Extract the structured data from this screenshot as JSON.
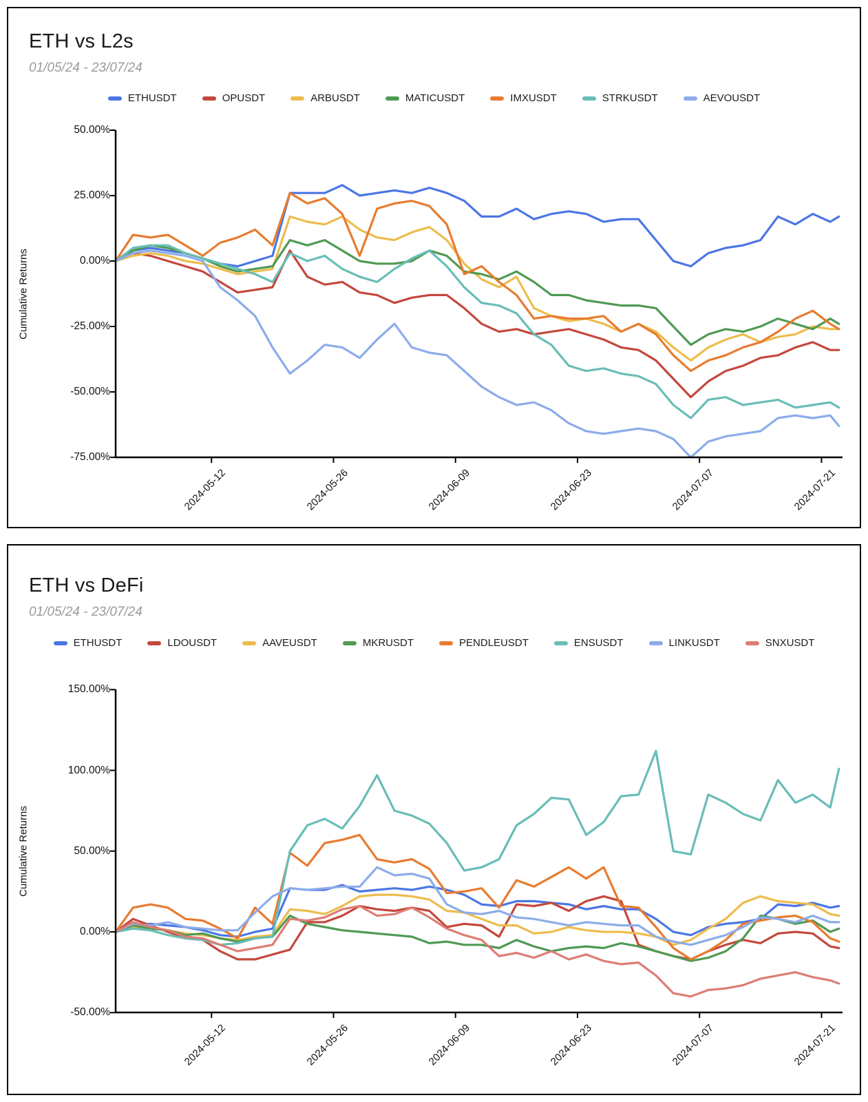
{
  "chart_data": [
    {
      "type": "line",
      "title": "ETH vs L2s",
      "subtitle": "01/05/24 - 23/07/24",
      "ylabel": "Cumulative Returns",
      "legend_position": "top-center",
      "grid": false,
      "ylim": [
        -75,
        50
      ],
      "y_ticks": [
        {
          "label": "50.00%",
          "value": 50
        },
        {
          "label": "25.00%",
          "value": 25
        },
        {
          "label": "0.00%",
          "value": 0
        },
        {
          "label": "-25.00%",
          "value": -25
        },
        {
          "label": "-50.00%",
          "value": -50
        },
        {
          "label": "-75.00%",
          "value": -75
        }
      ],
      "x_ticks": [
        "2024-05-12",
        "2024-05-26",
        "2024-06-09",
        "2024-06-23",
        "2024-07-07",
        "2024-07-21"
      ],
      "x": [
        "2024-05-01",
        "2024-05-03",
        "2024-05-05",
        "2024-05-07",
        "2024-05-09",
        "2024-05-11",
        "2024-05-13",
        "2024-05-15",
        "2024-05-17",
        "2024-05-19",
        "2024-05-21",
        "2024-05-23",
        "2024-05-25",
        "2024-05-27",
        "2024-05-29",
        "2024-05-31",
        "2024-06-02",
        "2024-06-04",
        "2024-06-06",
        "2024-06-08",
        "2024-06-10",
        "2024-06-12",
        "2024-06-14",
        "2024-06-16",
        "2024-06-18",
        "2024-06-20",
        "2024-06-22",
        "2024-06-24",
        "2024-06-26",
        "2024-06-28",
        "2024-06-30",
        "2024-07-02",
        "2024-07-04",
        "2024-07-06",
        "2024-07-08",
        "2024-07-10",
        "2024-07-12",
        "2024-07-14",
        "2024-07-16",
        "2024-07-18",
        "2024-07-20",
        "2024-07-22",
        "2024-07-23"
      ],
      "series": [
        {
          "name": "ETHUSDT",
          "color": "#4b76e3",
          "values": [
            0,
            4,
            5,
            4,
            3,
            1,
            -1,
            -2,
            0,
            2,
            26,
            26,
            26,
            29,
            25,
            26,
            27,
            26,
            28,
            26,
            23,
            17,
            17,
            20,
            16,
            18,
            19,
            18,
            15,
            16,
            16,
            8,
            0,
            -2,
            3,
            5,
            6,
            8,
            17,
            14,
            18,
            15,
            17
          ]
        },
        {
          "name": "OPUSDT",
          "color": "#c4473c",
          "values": [
            0,
            3,
            2,
            0,
            -2,
            -4,
            -8,
            -12,
            -11,
            -10,
            4,
            -6,
            -9,
            -8,
            -12,
            -13,
            -16,
            -14,
            -13,
            -13,
            -18,
            -24,
            -27,
            -26,
            -28,
            -27,
            -26,
            -28,
            -30,
            -33,
            -34,
            -38,
            -45,
            -52,
            -46,
            -42,
            -40,
            -37,
            -36,
            -33,
            -31,
            -34,
            -34
          ]
        },
        {
          "name": "ARBUSDT",
          "color": "#edbc4c",
          "values": [
            0,
            2,
            3,
            2,
            0,
            -1,
            -3,
            -5,
            -4,
            -3,
            17,
            15,
            14,
            17,
            12,
            9,
            8,
            11,
            13,
            8,
            -1,
            -7,
            -10,
            -6,
            -18,
            -21,
            -23,
            -22,
            -24,
            -27,
            -24,
            -27,
            -33,
            -38,
            -33,
            -30,
            -28,
            -31,
            -29,
            -28,
            -25,
            -26,
            -26
          ]
        },
        {
          "name": "MATICUSDT",
          "color": "#4f9a53",
          "values": [
            0,
            4,
            6,
            5,
            3,
            1,
            -2,
            -4,
            -3,
            -2,
            8,
            6,
            8,
            4,
            0,
            -1,
            -1,
            0,
            4,
            2,
            -4,
            -5,
            -7,
            -4,
            -8,
            -13,
            -13,
            -15,
            -16,
            -17,
            -17,
            -18,
            -25,
            -32,
            -28,
            -26,
            -27,
            -25,
            -22,
            -24,
            -26,
            -22,
            -24
          ]
        },
        {
          "name": "IMXUSDT",
          "color": "#e87b2f",
          "values": [
            0,
            10,
            9,
            10,
            6,
            2,
            7,
            9,
            12,
            6,
            26,
            22,
            24,
            18,
            2,
            20,
            22,
            23,
            21,
            14,
            -5,
            -2,
            -8,
            -13,
            -22,
            -21,
            -22,
            -22,
            -21,
            -27,
            -24,
            -28,
            -36,
            -42,
            -38,
            -36,
            -33,
            -31,
            -27,
            -22,
            -19,
            -24,
            -26
          ]
        },
        {
          "name": "STRKUSDT",
          "color": "#68bdb6",
          "values": [
            0,
            5,
            6,
            6,
            3,
            1,
            -1,
            -3,
            -5,
            -8,
            3,
            0,
            2,
            -3,
            -6,
            -8,
            -3,
            1,
            4,
            -2,
            -10,
            -16,
            -17,
            -20,
            -28,
            -32,
            -40,
            -42,
            -41,
            -43,
            -44,
            -47,
            -55,
            -60,
            -53,
            -52,
            -55,
            -54,
            -53,
            -56,
            -55,
            -54,
            -56
          ]
        },
        {
          "name": "AEVOUSDT",
          "color": "#8cacea",
          "values": [
            0,
            3,
            4,
            3,
            2,
            0,
            -10,
            -15,
            -21,
            -33,
            -43,
            -38,
            -32,
            -33,
            -37,
            -30,
            -24,
            -33,
            -35,
            -36,
            -42,
            -48,
            -52,
            -55,
            -54,
            -57,
            -62,
            -65,
            -66,
            -65,
            -64,
            -65,
            -68,
            -75,
            -69,
            -67,
            -66,
            -65,
            -60,
            -59,
            -60,
            -59,
            -63
          ]
        }
      ]
    },
    {
      "type": "line",
      "title": "ETH vs DeFi",
      "subtitle": "01/05/24 - 23/07/24",
      "ylabel": "Cumulative Returns",
      "legend_position": "top-center",
      "grid": false,
      "ylim": [
        -50,
        150
      ],
      "y_ticks": [
        {
          "label": "150.00%",
          "value": 150
        },
        {
          "label": "100.00%",
          "value": 100
        },
        {
          "label": "50.00%",
          "value": 50
        },
        {
          "label": "0.00%",
          "value": 0
        },
        {
          "label": "-50.00%",
          "value": -50
        }
      ],
      "x_ticks": [
        "2024-05-12",
        "2024-05-26",
        "2024-06-09",
        "2024-06-23",
        "2024-07-07",
        "2024-07-21"
      ],
      "x": [
        "2024-05-01",
        "2024-05-03",
        "2024-05-05",
        "2024-05-07",
        "2024-05-09",
        "2024-05-11",
        "2024-05-13",
        "2024-05-15",
        "2024-05-17",
        "2024-05-19",
        "2024-05-21",
        "2024-05-23",
        "2024-05-25",
        "2024-05-27",
        "2024-05-29",
        "2024-05-31",
        "2024-06-02",
        "2024-06-04",
        "2024-06-06",
        "2024-06-08",
        "2024-06-10",
        "2024-06-12",
        "2024-06-14",
        "2024-06-16",
        "2024-06-18",
        "2024-06-20",
        "2024-06-22",
        "2024-06-24",
        "2024-06-26",
        "2024-06-28",
        "2024-06-30",
        "2024-07-02",
        "2024-07-04",
        "2024-07-06",
        "2024-07-08",
        "2024-07-10",
        "2024-07-12",
        "2024-07-14",
        "2024-07-16",
        "2024-07-18",
        "2024-07-20",
        "2024-07-22",
        "2024-07-23"
      ],
      "series": [
        {
          "name": "ETHUSDT",
          "color": "#4b76e3",
          "values": [
            0,
            4,
            5,
            4,
            3,
            1,
            -2,
            -3,
            0,
            2,
            27,
            26,
            26,
            29,
            25,
            26,
            27,
            26,
            28,
            26,
            23,
            17,
            16,
            19,
            19,
            18,
            17,
            14,
            16,
            14,
            14,
            8,
            0,
            -2,
            3,
            5,
            6,
            8,
            17,
            16,
            18,
            15,
            16
          ]
        },
        {
          "name": "LDOUSDT",
          "color": "#c4473c",
          "values": [
            0,
            8,
            4,
            0,
            -4,
            -5,
            -12,
            -17,
            -17,
            -14,
            -11,
            6,
            6,
            10,
            16,
            14,
            13,
            15,
            13,
            3,
            5,
            4,
            -3,
            17,
            16,
            18,
            13,
            19,
            22,
            19,
            -8,
            -12,
            -15,
            -17,
            -12,
            -8,
            -5,
            -7,
            -1,
            0,
            -1,
            -9,
            -10
          ]
        },
        {
          "name": "AAVEUSDT",
          "color": "#edbc4c",
          "values": [
            0,
            3,
            2,
            1,
            -1,
            -2,
            -4,
            -5,
            -3,
            -2,
            14,
            13,
            11,
            16,
            22,
            23,
            23,
            22,
            20,
            13,
            12,
            8,
            4,
            4,
            -1,
            0,
            3,
            1,
            0,
            0,
            -1,
            -3,
            -8,
            -5,
            2,
            8,
            18,
            22,
            19,
            18,
            17,
            11,
            10
          ]
        },
        {
          "name": "MKRUSDT",
          "color": "#4f9a53",
          "values": [
            0,
            4,
            2,
            1,
            -2,
            -1,
            -4,
            -6,
            -4,
            -3,
            10,
            5,
            3,
            1,
            0,
            -1,
            -2,
            -3,
            -7,
            -6,
            -8,
            -8,
            -10,
            -5,
            -9,
            -12,
            -10,
            -9,
            -10,
            -7,
            -9,
            -12,
            -15,
            -18,
            -16,
            -12,
            -4,
            10,
            8,
            5,
            7,
            0,
            2
          ]
        },
        {
          "name": "PENDLEUSDT",
          "color": "#e87b2f",
          "values": [
            0,
            15,
            17,
            15,
            8,
            7,
            2,
            -4,
            15,
            5,
            49,
            41,
            55,
            57,
            60,
            45,
            43,
            45,
            39,
            24,
            25,
            27,
            15,
            32,
            28,
            34,
            40,
            33,
            40,
            16,
            15,
            3,
            -10,
            -17,
            -12,
            -5,
            5,
            7,
            9,
            10,
            6,
            -4,
            -6
          ]
        },
        {
          "name": "ENSUSDT",
          "color": "#68bdb6",
          "values": [
            0,
            2,
            1,
            -2,
            -4,
            -5,
            -8,
            -7,
            -4,
            -3,
            50,
            66,
            70,
            64,
            78,
            97,
            75,
            72,
            67,
            55,
            38,
            40,
            45,
            66,
            73,
            83,
            82,
            60,
            68,
            84,
            85,
            112,
            50,
            48,
            85,
            80,
            73,
            69,
            94,
            80,
            85,
            77,
            101
          ]
        },
        {
          "name": "LINKUSDT",
          "color": "#8cacea",
          "values": [
            0,
            5,
            4,
            6,
            3,
            2,
            1,
            1,
            12,
            22,
            27,
            26,
            27,
            28,
            28,
            40,
            35,
            36,
            33,
            17,
            12,
            11,
            13,
            9,
            8,
            6,
            4,
            6,
            5,
            4,
            4,
            -3,
            -6,
            -8,
            -5,
            -2,
            3,
            9,
            8,
            6,
            10,
            6,
            6
          ]
        },
        {
          "name": "SNXUSDT",
          "color": "#dd7d74",
          "values": [
            0,
            6,
            3,
            1,
            -3,
            -4,
            -8,
            -12,
            -10,
            -8,
            8,
            7,
            9,
            14,
            16,
            10,
            11,
            15,
            9,
            2,
            -2,
            -5,
            -15,
            -13,
            -16,
            -12,
            -17,
            -14,
            -18,
            -20,
            -19,
            -27,
            -38,
            -40,
            -36,
            -35,
            -33,
            -29,
            -27,
            -25,
            -28,
            -30,
            -32
          ]
        }
      ]
    }
  ]
}
